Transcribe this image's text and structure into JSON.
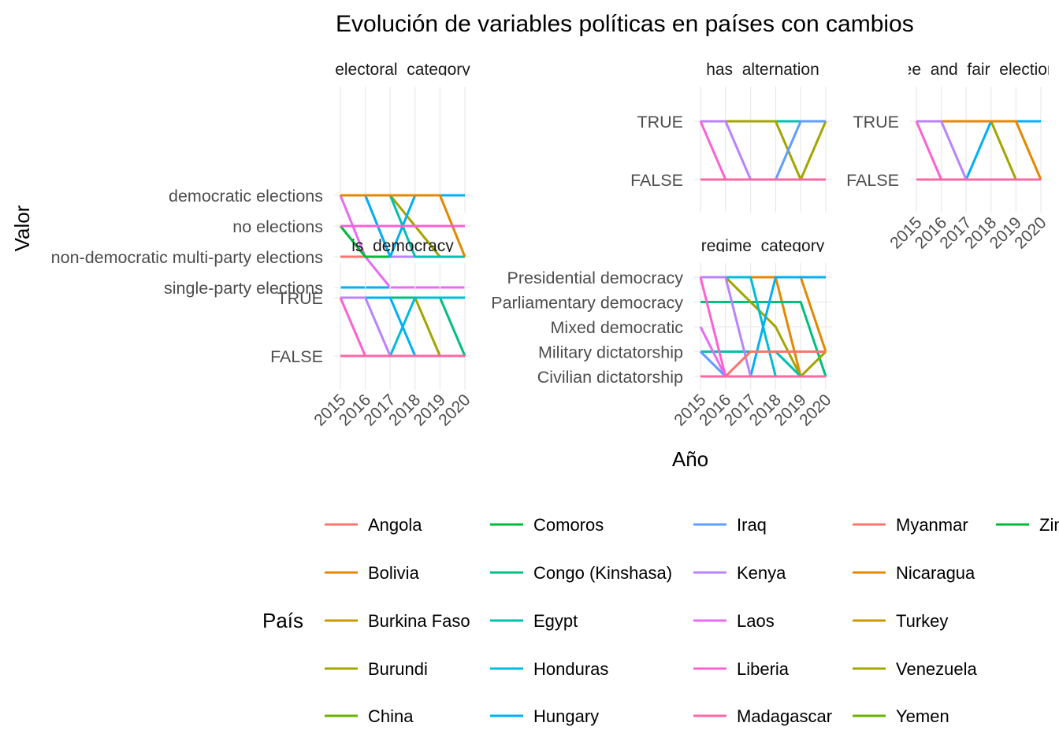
{
  "chart_data": {
    "type": "line",
    "title": "Evolución de variables políticas en países con cambios",
    "xlabel": "Año",
    "ylabel": "Valor",
    "x": [
      "2015",
      "2016",
      "2017",
      "2018",
      "2019",
      "2020"
    ],
    "legend": {
      "title": "País",
      "placement": "bottom",
      "entries": [
        {
          "name": "Angola",
          "color": "#F8766D"
        },
        {
          "name": "Bolivia",
          "color": "#E58700"
        },
        {
          "name": "Burkina Faso",
          "color": "#C99800"
        },
        {
          "name": "Burundi",
          "color": "#A3A500"
        },
        {
          "name": "China",
          "color": "#6BB100"
        },
        {
          "name": "Comoros",
          "color": "#00BA38"
        },
        {
          "name": "Congo (Kinshasa)",
          "color": "#00BF7D"
        },
        {
          "name": "Egypt",
          "color": "#00C0AF"
        },
        {
          "name": "Honduras",
          "color": "#00BCD8"
        },
        {
          "name": "Hungary",
          "color": "#00B0F6"
        },
        {
          "name": "Iraq",
          "color": "#619CFF"
        },
        {
          "name": "Kenya",
          "color": "#B983FF"
        },
        {
          "name": "Laos",
          "color": "#E76BF3"
        },
        {
          "name": "Liberia",
          "color": "#FD61D1"
        },
        {
          "name": "Madagascar",
          "color": "#FF67A4"
        },
        {
          "name": "Myanmar",
          "color": "#F8766D"
        },
        {
          "name": "Nicaragua",
          "color": "#E58700"
        },
        {
          "name": "Turkey",
          "color": "#C99800"
        },
        {
          "name": "Venezuela",
          "color": "#A3A500"
        },
        {
          "name": "Yemen",
          "color": "#6BB100"
        },
        {
          "name": "Zimbabwe",
          "color": "#00BA38"
        }
      ]
    },
    "panels": [
      {
        "title": "electoral_category",
        "levels": [
          "democratic elections",
          "no elections",
          "non-democratic multi-party elections",
          "single-party elections"
        ],
        "series": [
          {
            "color": "#00B0F6",
            "values": [
              3,
              3,
              3,
              3,
              3,
              3
            ]
          },
          {
            "color": "#E76BF3",
            "values": [
              0,
              2,
              3,
              3,
              3,
              3
            ]
          },
          {
            "color": "#FF67A4",
            "values": [
              2,
              2,
              2,
              2,
              2,
              2
            ]
          },
          {
            "color": "#F8766D",
            "values": [
              2,
              2,
              2,
              2,
              2,
              2
            ]
          },
          {
            "color": "#00BA38",
            "values": [
              1,
              2,
              2,
              2,
              2,
              2
            ]
          },
          {
            "color": "#A3A500",
            "values": [
              0,
              0,
              0,
              1,
              2,
              2
            ]
          },
          {
            "color": "#B983FF",
            "values": [
              0,
              0,
              2,
              2,
              2,
              2
            ]
          },
          {
            "color": "#00B0F6",
            "values": [
              0,
              0,
              2,
              0,
              0,
              0
            ]
          },
          {
            "color": "#00C0AF",
            "values": [
              0,
              0,
              0,
              2,
              2,
              2
            ]
          },
          {
            "color": "#00B0F6",
            "values": [
              0,
              0,
              0,
              0,
              0,
              0
            ]
          },
          {
            "color": "#E58700",
            "values": [
              0,
              0,
              0,
              0,
              0,
              2
            ]
          },
          {
            "color": "#FD61D1",
            "values": [
              1,
              1,
              1,
              1,
              1,
              1
            ]
          }
        ]
      },
      {
        "title": "has_alternation",
        "levels": [
          "FALSE",
          "TRUE"
        ],
        "series": [
          {
            "color": "#00C0AF",
            "values": [
              1,
              1,
              1,
              1,
              1,
              1
            ]
          },
          {
            "color": "#A3A500",
            "values": [
              1,
              1,
              1,
              1,
              0,
              1
            ]
          },
          {
            "color": "#619CFF",
            "values": [
              0,
              0,
              0,
              0,
              1,
              1
            ]
          },
          {
            "color": "#B983FF",
            "values": [
              1,
              1,
              0,
              0,
              0,
              0
            ]
          },
          {
            "color": "#FD61D1",
            "values": [
              1,
              0,
              0,
              0,
              0,
              0
            ]
          },
          {
            "color": "#FF67A4",
            "values": [
              0,
              0,
              0,
              0,
              0,
              0
            ]
          }
        ]
      },
      {
        "title": "free_and_fair_elections",
        "levels": [
          "FALSE",
          "TRUE"
        ],
        "series": [
          {
            "color": "#00B0F6",
            "values": [
              1,
              1,
              1,
              1,
              1,
              1
            ]
          },
          {
            "color": "#A3A500",
            "values": [
              1,
              1,
              1,
              1,
              0,
              0
            ]
          },
          {
            "color": "#00B0F6",
            "values": [
              0,
              0,
              0,
              1,
              1,
              1
            ]
          },
          {
            "color": "#E58700",
            "values": [
              1,
              1,
              1,
              1,
              1,
              0
            ]
          },
          {
            "color": "#B983FF",
            "values": [
              1,
              1,
              0,
              0,
              0,
              0
            ]
          },
          {
            "color": "#FD61D1",
            "values": [
              1,
              0,
              0,
              0,
              0,
              0
            ]
          },
          {
            "color": "#FF67A4",
            "values": [
              0,
              0,
              0,
              0,
              0,
              0
            ]
          }
        ]
      },
      {
        "title": "is_democracy",
        "levels": [
          "FALSE",
          "TRUE"
        ],
        "series": [
          {
            "color": "#00B0F6",
            "values": [
              1,
              1,
              1,
              1,
              1,
              1
            ]
          },
          {
            "color": "#A3A500",
            "values": [
              1,
              1,
              1,
              1,
              0,
              0
            ]
          },
          {
            "color": "#00BF7D",
            "values": [
              1,
              1,
              1,
              1,
              1,
              0
            ]
          },
          {
            "color": "#00BCD8",
            "values": [
              0,
              0,
              0,
              1,
              1,
              1
            ]
          },
          {
            "color": "#00B0F6",
            "values": [
              1,
              1,
              1,
              0,
              0,
              0
            ]
          },
          {
            "color": "#B983FF",
            "values": [
              1,
              1,
              0,
              0,
              0,
              0
            ]
          },
          {
            "color": "#FD61D1",
            "values": [
              1,
              0,
              0,
              0,
              0,
              0
            ]
          },
          {
            "color": "#FF67A4",
            "values": [
              0,
              0,
              0,
              0,
              0,
              0
            ]
          }
        ]
      },
      {
        "title": "regime_category",
        "levels": [
          "Civilian dictatorship",
          "Military dictatorship",
          "Mixed democratic",
          "Parliamentary democracy",
          "Presidential democracy"
        ],
        "series": [
          {
            "color": "#00B0F6",
            "values": [
              4,
              4,
              4,
              4,
              4,
              4
            ]
          },
          {
            "color": "#E58700",
            "values": [
              4,
              4,
              4,
              4,
              4,
              1
            ]
          },
          {
            "color": "#E58700",
            "values": [
              4,
              4,
              4,
              4,
              0,
              0
            ]
          },
          {
            "color": "#00BF7D",
            "values": [
              3,
              3,
              3,
              3,
              3,
              0
            ]
          },
          {
            "color": "#A3A500",
            "values": [
              4,
              4,
              3,
              2,
              0,
              1
            ]
          },
          {
            "color": "#00BCD8",
            "values": [
              4,
              4,
              4,
              0,
              0,
              0
            ]
          },
          {
            "color": "#00B0F6",
            "values": [
              0,
              0,
              0,
              4,
              4,
              4
            ]
          },
          {
            "color": "#00C0AF",
            "values": [
              1,
              1,
              1,
              1,
              0,
              0
            ]
          },
          {
            "color": "#B983FF",
            "values": [
              4,
              4,
              0,
              0,
              0,
              0
            ]
          },
          {
            "color": "#E76BF3",
            "values": [
              2,
              0,
              0,
              0,
              0,
              0
            ]
          },
          {
            "color": "#619CFF",
            "values": [
              1,
              0,
              0,
              0,
              0,
              0
            ]
          },
          {
            "color": "#F8766D",
            "values": [
              0,
              0,
              1,
              1,
              1,
              1
            ]
          },
          {
            "color": "#FD61D1",
            "values": [
              4,
              0,
              0,
              0,
              0,
              0
            ]
          },
          {
            "color": "#FF67A4",
            "values": [
              0,
              0,
              0,
              0,
              0,
              0
            ]
          }
        ]
      }
    ],
    "grid": true
  }
}
